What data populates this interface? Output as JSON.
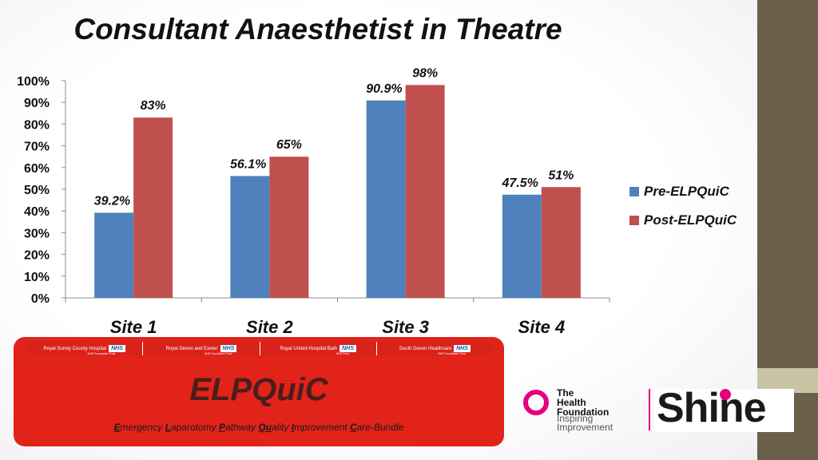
{
  "slide": {
    "title": "Consultant Anaesthetist in Theatre",
    "colors": {
      "side_strip": "#6a604a",
      "accent": "#e1231a",
      "brand_pink": "#e3007d"
    }
  },
  "chart_data": {
    "type": "bar",
    "title": "",
    "categories": [
      "Site 1",
      "Site 2",
      "Site 3",
      "Site 4"
    ],
    "series": [
      {
        "name": "Pre-ELPQuiC",
        "color": "#4f81bd",
        "values": [
          39.2,
          56.1,
          90.9,
          47.5
        ],
        "labels": [
          "39.2%",
          "56.1%",
          "90.9%",
          "47.5%"
        ]
      },
      {
        "name": "Post-ELPQuiC",
        "color": "#c0504d",
        "values": [
          83,
          65,
          98,
          51
        ],
        "labels": [
          "83%",
          "65%",
          "98%",
          "51%"
        ]
      }
    ],
    "ylim": [
      0,
      100
    ],
    "yticks": [
      "0%",
      "10%",
      "20%",
      "30%",
      "40%",
      "50%",
      "60%",
      "70%",
      "80%",
      "90%",
      "100%"
    ],
    "grid": false,
    "legend": "right"
  },
  "elpquic": {
    "hospitals": [
      {
        "name": "Royal Surrey County Hospital",
        "sub": "NHS Foundation Trust"
      },
      {
        "name": "Royal Devon and Exeter",
        "sub": "NHS Foundation Trust"
      },
      {
        "name": "Royal United Hospital Bath",
        "sub": "NHS Trust"
      },
      {
        "name": "South Devon Healthcare",
        "sub": "NHS Foundation Trust"
      }
    ],
    "nhs_label": "NHS",
    "title": "ELPQuiC",
    "subtitle_parts": [
      {
        "b": "E",
        "rest": "mergency "
      },
      {
        "b": "L",
        "rest": "aparotomy "
      },
      {
        "b": "P",
        "rest": "athway "
      },
      {
        "b": "Qu",
        "rest": "ality "
      },
      {
        "b": "I",
        "rest": "mprovement "
      },
      {
        "b": "C",
        "rest": "are-Bundle"
      }
    ]
  },
  "logos": {
    "health_foundation": {
      "line1": "The",
      "line2": "Health",
      "line3": "Foundation",
      "tag1": "Inspiring",
      "tag2": "Improvement"
    },
    "shine": "Shine"
  }
}
